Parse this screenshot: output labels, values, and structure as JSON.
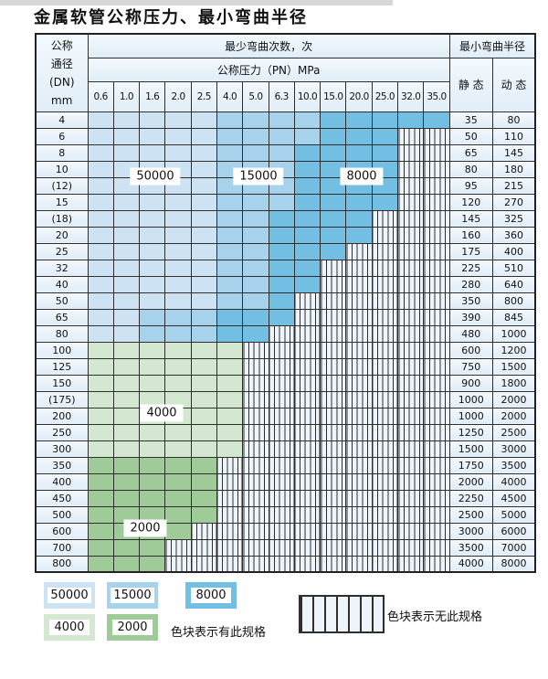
{
  "title": "金属软管公称压力、最小弯曲半径",
  "table": {
    "header": {
      "dn_lines": [
        "公称",
        "通径",
        "(DN)",
        "mm"
      ],
      "bend_cycles": "最少弯曲次数，次",
      "pressure": "公称压力（PN）MPa",
      "pressures": [
        "0.6",
        "1.0",
        "1.6",
        "2.0",
        "2.5",
        "4.0",
        "5.0",
        "6.3",
        "10.0",
        "15.0",
        "20.0",
        "25.0",
        "32.0",
        "35.0"
      ],
      "min_bend_radius": "最小弯曲半径",
      "static": "静 态",
      "dynamic": "动 态"
    },
    "band_labels": [
      "50000",
      "15000",
      "8000",
      "4000",
      "2000"
    ],
    "rows": [
      {
        "dn": "4",
        "static": "35",
        "dynamic": "80",
        "segments": [
          [
            "b1",
            5
          ],
          [
            "b2",
            4
          ],
          [
            "b3",
            5
          ]
        ]
      },
      {
        "dn": "6",
        "static": "50",
        "dynamic": "110",
        "segments": [
          [
            "b1",
            5
          ],
          [
            "b2",
            4
          ],
          [
            "b3",
            3
          ],
          [
            "x",
            2
          ]
        ]
      },
      {
        "dn": "8",
        "static": "65",
        "dynamic": "145",
        "segments": [
          [
            "b1",
            5
          ],
          [
            "b2",
            3
          ],
          [
            "b3",
            4
          ],
          [
            "x",
            2
          ]
        ]
      },
      {
        "dn": "10",
        "static": "80",
        "dynamic": "180",
        "segments": [
          [
            "b1",
            5
          ],
          [
            "b2",
            3
          ],
          [
            "b3",
            4
          ],
          [
            "x",
            2
          ]
        ]
      },
      {
        "dn": "(12)",
        "static": "95",
        "dynamic": "215",
        "segments": [
          [
            "b1",
            5
          ],
          [
            "b2",
            3
          ],
          [
            "b3",
            4
          ],
          [
            "x",
            2
          ]
        ]
      },
      {
        "dn": "15",
        "static": "120",
        "dynamic": "270",
        "segments": [
          [
            "b1",
            5
          ],
          [
            "b2",
            3
          ],
          [
            "b3",
            4
          ],
          [
            "x",
            2
          ]
        ]
      },
      {
        "dn": "(18)",
        "static": "145",
        "dynamic": "325",
        "segments": [
          [
            "b1",
            5
          ],
          [
            "b2",
            2
          ],
          [
            "b3",
            4
          ],
          [
            "x",
            3
          ]
        ]
      },
      {
        "dn": "20",
        "static": "160",
        "dynamic": "360",
        "segments": [
          [
            "b1",
            5
          ],
          [
            "b2",
            2
          ],
          [
            "b3",
            4
          ],
          [
            "x",
            3
          ]
        ]
      },
      {
        "dn": "25",
        "static": "175",
        "dynamic": "400",
        "segments": [
          [
            "b1",
            5
          ],
          [
            "b2",
            2
          ],
          [
            "b3",
            3
          ],
          [
            "x",
            4
          ]
        ]
      },
      {
        "dn": "32",
        "static": "225",
        "dynamic": "510",
        "segments": [
          [
            "b1",
            5
          ],
          [
            "b2",
            2
          ],
          [
            "b3",
            2
          ],
          [
            "x",
            5
          ]
        ]
      },
      {
        "dn": "40",
        "static": "280",
        "dynamic": "640",
        "segments": [
          [
            "b1",
            5
          ],
          [
            "b2",
            2
          ],
          [
            "b3",
            2
          ],
          [
            "x",
            5
          ]
        ]
      },
      {
        "dn": "50",
        "static": "350",
        "dynamic": "800",
        "segments": [
          [
            "b1",
            5
          ],
          [
            "b2",
            2
          ],
          [
            "b3",
            1
          ],
          [
            "x",
            6
          ]
        ]
      },
      {
        "dn": "65",
        "static": "390",
        "dynamic": "845",
        "segments": [
          [
            "b1",
            2
          ],
          [
            "b2",
            3
          ],
          [
            "b3",
            3
          ],
          [
            "x",
            6
          ]
        ]
      },
      {
        "dn": "80",
        "static": "480",
        "dynamic": "1000",
        "segments": [
          [
            "b1",
            2
          ],
          [
            "b2",
            3
          ],
          [
            "b3",
            2
          ],
          [
            "x",
            7
          ]
        ]
      },
      {
        "dn": "100",
        "static": "600",
        "dynamic": "1200",
        "segments": [
          [
            "g1",
            6
          ],
          [
            "x",
            8
          ]
        ]
      },
      {
        "dn": "125",
        "static": "750",
        "dynamic": "1500",
        "segments": [
          [
            "g1",
            6
          ],
          [
            "x",
            8
          ]
        ]
      },
      {
        "dn": "150",
        "static": "900",
        "dynamic": "1800",
        "segments": [
          [
            "g1",
            6
          ],
          [
            "x",
            8
          ]
        ]
      },
      {
        "dn": "(175)",
        "static": "1000",
        "dynamic": "2000",
        "segments": [
          [
            "g1",
            6
          ],
          [
            "x",
            8
          ]
        ]
      },
      {
        "dn": "200",
        "static": "1000",
        "dynamic": "2000",
        "segments": [
          [
            "g1",
            6
          ],
          [
            "x",
            8
          ]
        ]
      },
      {
        "dn": "250",
        "static": "1250",
        "dynamic": "2500",
        "segments": [
          [
            "g1",
            6
          ],
          [
            "x",
            8
          ]
        ]
      },
      {
        "dn": "300",
        "static": "1500",
        "dynamic": "3000",
        "segments": [
          [
            "g1",
            6
          ],
          [
            "x",
            8
          ]
        ]
      },
      {
        "dn": "350",
        "static": "1750",
        "dynamic": "3500",
        "segments": [
          [
            "g2",
            5
          ],
          [
            "x",
            9
          ]
        ]
      },
      {
        "dn": "400",
        "static": "2000",
        "dynamic": "4000",
        "segments": [
          [
            "g2",
            5
          ],
          [
            "x",
            9
          ]
        ]
      },
      {
        "dn": "450",
        "static": "2250",
        "dynamic": "4500",
        "segments": [
          [
            "g2",
            5
          ],
          [
            "x",
            9
          ]
        ]
      },
      {
        "dn": "500",
        "static": "2500",
        "dynamic": "5000",
        "segments": [
          [
            "g2",
            5
          ],
          [
            "x",
            9
          ]
        ]
      },
      {
        "dn": "600",
        "static": "3000",
        "dynamic": "6000",
        "segments": [
          [
            "g2",
            4
          ],
          [
            "x",
            10
          ]
        ]
      },
      {
        "dn": "700",
        "static": "3500",
        "dynamic": "7000",
        "segments": [
          [
            "g2",
            3
          ],
          [
            "x",
            11
          ]
        ]
      },
      {
        "dn": "800",
        "static": "4000",
        "dynamic": "8000",
        "segments": [
          [
            "g2",
            3
          ],
          [
            "x",
            11
          ]
        ]
      }
    ]
  },
  "colors": {
    "b1": "#cde3f3",
    "b2": "#a6d2ec",
    "b3": "#72bfe3",
    "g1": "#d4e7d0",
    "g2": "#9ecb97",
    "stripe_bg": "#edf4fa",
    "grid": "#2e2e2e"
  },
  "legend": {
    "swatches": [
      {
        "label": "50000",
        "color_key": "b1"
      },
      {
        "label": "15000",
        "color_key": "b2"
      },
      {
        "label": "8000",
        "color_key": "b3"
      },
      {
        "label": "4000",
        "color_key": "g1"
      },
      {
        "label": "2000",
        "color_key": "g2"
      }
    ],
    "colored_note": "色块表示有此规格",
    "striped_note": "色块表示无此规格"
  }
}
